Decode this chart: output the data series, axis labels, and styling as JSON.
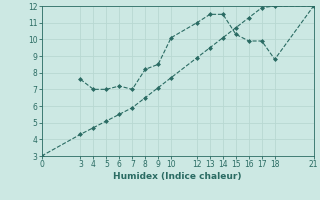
{
  "xlabel": "Humidex (Indice chaleur)",
  "bg_color": "#cce8e3",
  "grid_color": "#b8d8d2",
  "line_color": "#2a6b63",
  "line1_x": [
    0,
    3,
    4,
    5,
    6,
    7,
    8,
    9,
    10,
    12,
    13,
    14,
    15,
    16,
    17,
    18,
    21
  ],
  "line1_y": [
    3.0,
    4.3,
    4.7,
    5.1,
    5.5,
    5.9,
    6.5,
    7.1,
    7.7,
    8.9,
    9.5,
    10.1,
    10.7,
    11.3,
    11.9,
    12.0,
    12.0
  ],
  "line2_x": [
    3,
    4,
    5,
    6,
    7,
    8,
    9,
    10,
    12,
    13,
    14,
    15,
    16,
    17,
    18,
    21
  ],
  "line2_y": [
    7.6,
    7.0,
    7.0,
    7.2,
    7.0,
    8.2,
    8.5,
    10.1,
    11.0,
    11.5,
    11.5,
    10.3,
    9.9,
    9.9,
    8.8,
    12.0
  ],
  "xlim": [
    0,
    21
  ],
  "ylim": [
    3,
    12
  ],
  "xticks": [
    0,
    3,
    4,
    5,
    6,
    7,
    8,
    9,
    10,
    12,
    13,
    14,
    15,
    16,
    17,
    18,
    21
  ],
  "yticks": [
    3,
    4,
    5,
    6,
    7,
    8,
    9,
    10,
    11,
    12
  ],
  "tick_fontsize": 5.5,
  "xlabel_fontsize": 6.5
}
